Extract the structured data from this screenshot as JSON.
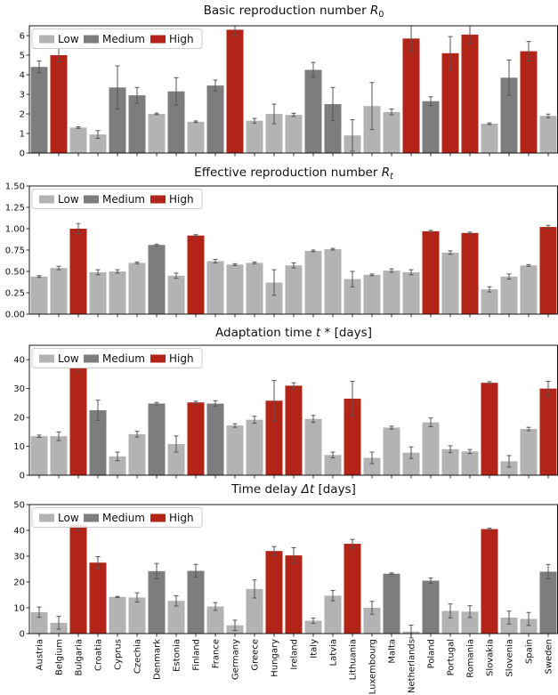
{
  "countries": [
    "Austria",
    "Belgium",
    "Bulgaria",
    "Croatia",
    "Cyprus",
    "Czechia",
    "Denmark",
    "Estonia",
    "Finland",
    "France",
    "Germany",
    "Greece",
    "Hungary",
    "Ireland",
    "Italy",
    "Latvia",
    "Lithuania",
    "Luxembourg",
    "Malta",
    "Netherlands",
    "Poland",
    "Portugal",
    "Romania",
    "Slovakia",
    "Slovenia",
    "Spain",
    "Sweden"
  ],
  "legend": {
    "low": "Low",
    "medium": "Medium",
    "high": "High"
  },
  "colors": {
    "low": "#b3b3b3",
    "medium": "#7d7d7d",
    "high": "#b22418",
    "error": "#555555"
  },
  "chart_data": [
    {
      "type": "bar",
      "title": "Basic reproduction number R₀",
      "title_text": "Basic reproduction number",
      "title_symbol": "R",
      "title_sub": "0",
      "title_suffix": "",
      "ylim": [
        0,
        6.5
      ],
      "yticks": [
        0,
        1,
        2,
        3,
        4,
        5,
        6
      ],
      "ytick_labels": [
        "0",
        "1",
        "2",
        "3",
        "4",
        "5",
        "6"
      ],
      "legend_position": "top-left",
      "values": [
        4.4,
        5.0,
        1.3,
        0.95,
        3.35,
        2.95,
        2.0,
        3.15,
        1.6,
        3.45,
        6.3,
        1.65,
        2.0,
        1.95,
        4.25,
        2.5,
        0.9,
        2.4,
        2.1,
        5.85,
        2.65,
        5.1,
        6.05,
        1.5,
        3.85,
        5.2,
        1.9
      ],
      "errors": [
        0.3,
        0.35,
        0.04,
        0.2,
        1.1,
        0.4,
        0.04,
        0.7,
        0.04,
        0.28,
        0.3,
        0.12,
        0.5,
        0.08,
        0.38,
        0.85,
        0.8,
        1.2,
        0.15,
        0.65,
        0.22,
        0.85,
        0.45,
        0.04,
        0.9,
        0.5,
        0.09
      ],
      "levels": [
        "medium",
        "high",
        "low",
        "low",
        "medium",
        "medium",
        "low",
        "medium",
        "low",
        "medium",
        "high",
        "low",
        "low",
        "low",
        "medium",
        "medium",
        "low",
        "low",
        "low",
        "high",
        "medium",
        "high",
        "high",
        "low",
        "medium",
        "high",
        "low"
      ]
    },
    {
      "type": "bar",
      "title": "Effective reproduction number Rₜ",
      "title_text": "Effective reproduction number",
      "title_symbol": "R",
      "title_sub": "t",
      "title_suffix": "",
      "ylim": [
        0,
        1.5
      ],
      "yticks": [
        0,
        0.25,
        0.5,
        0.75,
        1.0,
        1.25,
        1.5
      ],
      "ytick_labels": [
        "0.00",
        "0.25",
        "0.50",
        "0.75",
        "1.00",
        "1.25",
        "1.50"
      ],
      "legend_position": "top-left",
      "values": [
        0.44,
        0.54,
        1.0,
        0.49,
        0.5,
        0.6,
        0.81,
        0.45,
        0.92,
        0.62,
        0.58,
        0.6,
        0.37,
        0.57,
        0.74,
        0.76,
        0.41,
        0.46,
        0.51,
        0.49,
        0.97,
        0.72,
        0.95,
        0.29,
        0.44,
        0.57,
        1.02
      ],
      "errors": [
        0.01,
        0.02,
        0.06,
        0.03,
        0.02,
        0.01,
        0.01,
        0.03,
        0.01,
        0.02,
        0.01,
        0.01,
        0.15,
        0.03,
        0.01,
        0.01,
        0.09,
        0.01,
        0.02,
        0.03,
        0.01,
        0.02,
        0.01,
        0.03,
        0.03,
        0.01,
        0.02
      ],
      "levels": [
        "low",
        "low",
        "high",
        "low",
        "low",
        "low",
        "medium",
        "low",
        "high",
        "low",
        "low",
        "low",
        "low",
        "low",
        "low",
        "low",
        "low",
        "low",
        "low",
        "low",
        "high",
        "low",
        "high",
        "low",
        "low",
        "low",
        "high"
      ]
    },
    {
      "type": "bar",
      "title": "Adaptation time t* [days]",
      "title_text": "Adaptation time",
      "title_symbol": "t",
      "title_sub": "",
      "title_suffix": " * [days]",
      "ylim": [
        0,
        45
      ],
      "yticks": [
        0,
        10,
        20,
        30,
        40
      ],
      "ytick_labels": [
        "0",
        "10",
        "20",
        "30",
        "40"
      ],
      "legend_position": "top-left",
      "values": [
        13.5,
        13.5,
        37.0,
        22.5,
        6.5,
        14.2,
        24.8,
        10.8,
        25.2,
        24.8,
        17.2,
        19.2,
        25.8,
        31.0,
        19.5,
        7.0,
        26.5,
        6.0,
        16.5,
        7.8,
        18.3,
        9.0,
        8.2,
        32.0,
        4.8,
        16.0,
        30.0
      ],
      "errors": [
        0.4,
        1.5,
        1.2,
        3.5,
        1.5,
        1.0,
        0.4,
        2.8,
        0.4,
        1.0,
        0.6,
        1.2,
        7.0,
        1.0,
        1.2,
        1.0,
        6.0,
        2.0,
        0.5,
        2.0,
        1.5,
        1.2,
        0.7,
        0.4,
        2.0,
        0.6,
        2.5
      ],
      "levels": [
        "low",
        "low",
        "high",
        "medium",
        "low",
        "low",
        "medium",
        "low",
        "high",
        "medium",
        "low",
        "low",
        "high",
        "high",
        "low",
        "low",
        "high",
        "low",
        "low",
        "low",
        "low",
        "low",
        "low",
        "high",
        "low",
        "low",
        "high"
      ]
    },
    {
      "type": "bar",
      "title": "Time delay Δt [days]",
      "title_text": "Time delay",
      "title_symbol": "Δt",
      "title_sub": "",
      "title_suffix": " [days]",
      "ylim": [
        0,
        50
      ],
      "yticks": [
        0,
        10,
        20,
        30,
        40,
        50
      ],
      "ytick_labels": [
        "0",
        "10",
        "20",
        "30",
        "40",
        "50"
      ],
      "legend_position": "top-left",
      "values": [
        8.3,
        4.2,
        42.0,
        27.5,
        14.2,
        14.0,
        24.2,
        12.7,
        24.3,
        10.5,
        3.2,
        17.3,
        32.0,
        30.3,
        5.0,
        14.7,
        34.8,
        10.0,
        23.2,
        0.8,
        20.5,
        8.8,
        8.5,
        40.5,
        6.2,
        5.7,
        24.0
      ],
      "errors": [
        2.0,
        2.5,
        2.0,
        2.3,
        0.2,
        1.8,
        3.0,
        2.0,
        2.5,
        1.5,
        2.0,
        3.5,
        1.7,
        3.0,
        1.0,
        2.0,
        1.7,
        2.5,
        0.3,
        2.5,
        1.0,
        2.7,
        2.3,
        0.3,
        2.5,
        2.5,
        2.8
      ],
      "levels": [
        "low",
        "low",
        "high",
        "high",
        "low",
        "low",
        "medium",
        "low",
        "medium",
        "low",
        "low",
        "low",
        "high",
        "high",
        "low",
        "low",
        "high",
        "low",
        "medium",
        "low",
        "medium",
        "low",
        "low",
        "high",
        "low",
        "low",
        "medium"
      ]
    }
  ]
}
